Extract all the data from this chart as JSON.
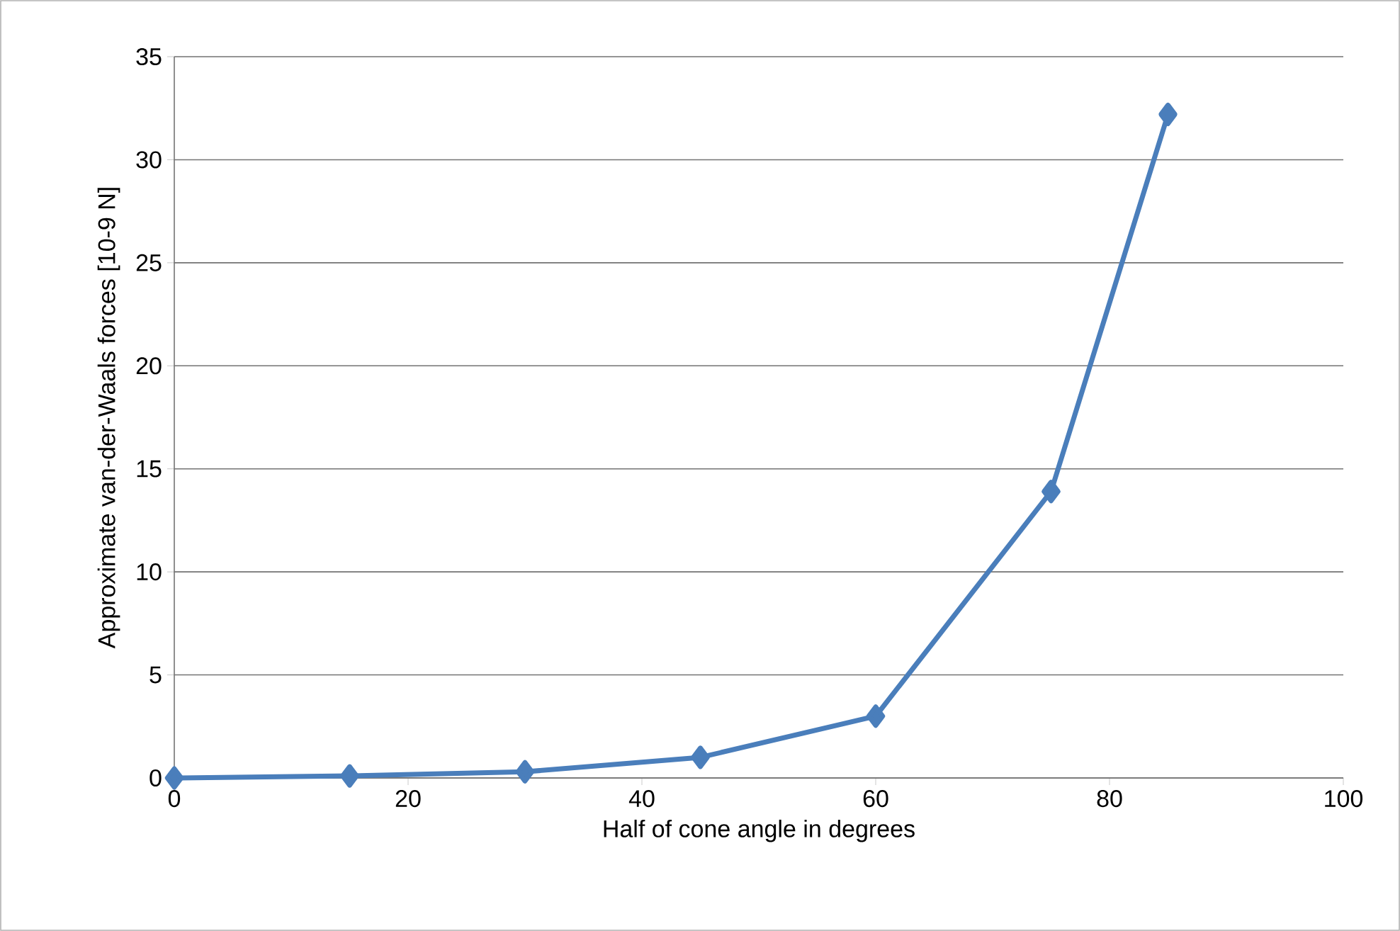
{
  "chart_data": {
    "type": "line",
    "xlabel": "Half of cone angle in degrees",
    "ylabel": "Approximate van-der-Waals forces [10-9  N]",
    "x": [
      0,
      15,
      30,
      45,
      60,
      75,
      85
    ],
    "series": [
      {
        "color": "#4a7ebb",
        "values": [
          0,
          0.1,
          0.3,
          1.0,
          3.0,
          13.9,
          32.2
        ]
      }
    ],
    "xlim": [
      0,
      100
    ],
    "xticks": [
      0,
      20,
      40,
      60,
      80,
      100
    ],
    "ylim": [
      0,
      35
    ],
    "yticks": [
      0,
      5,
      10,
      15,
      20,
      25,
      30,
      35
    ],
    "grid": "y",
    "marker": "diamond",
    "line_style": "solid"
  }
}
